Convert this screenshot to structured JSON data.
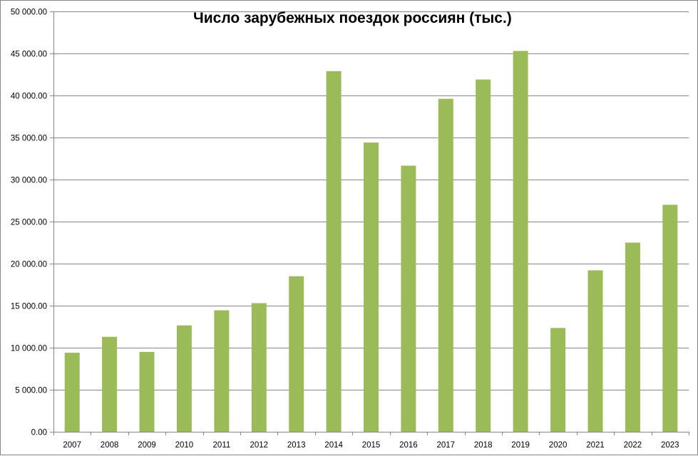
{
  "chart_data": {
    "type": "bar",
    "title": "Число зарубежных поездок россиян (тыс.)",
    "xlabel": "",
    "ylabel": "",
    "categories": [
      "2007",
      "2008",
      "2009",
      "2010",
      "2011",
      "2012",
      "2013",
      "2014",
      "2015",
      "2016",
      "2017",
      "2018",
      "2019",
      "2020",
      "2021",
      "2022",
      "2023"
    ],
    "values": [
      9400,
      11300,
      9500,
      12650,
      14450,
      15300,
      18500,
      42900,
      34400,
      31650,
      39600,
      41900,
      45300,
      12350,
      19200,
      22500,
      27000
    ],
    "ylim": [
      0,
      50000
    ],
    "yticks": [
      0,
      5000,
      10000,
      15000,
      20000,
      25000,
      30000,
      35000,
      40000,
      45000,
      50000
    ],
    "ytick_labels": [
      "0.00",
      "5 000.00",
      "10 000.00",
      "15 000.00",
      "20 000.00",
      "25 000.00",
      "30 000.00",
      "35 000.00",
      "40 000.00",
      "45 000.00",
      "50 000.00"
    ],
    "grid": true,
    "legend": "none",
    "colors": {
      "bar": "#9BBB59",
      "grid": "#868686",
      "axis": "#868686",
      "text": "#000000"
    }
  }
}
